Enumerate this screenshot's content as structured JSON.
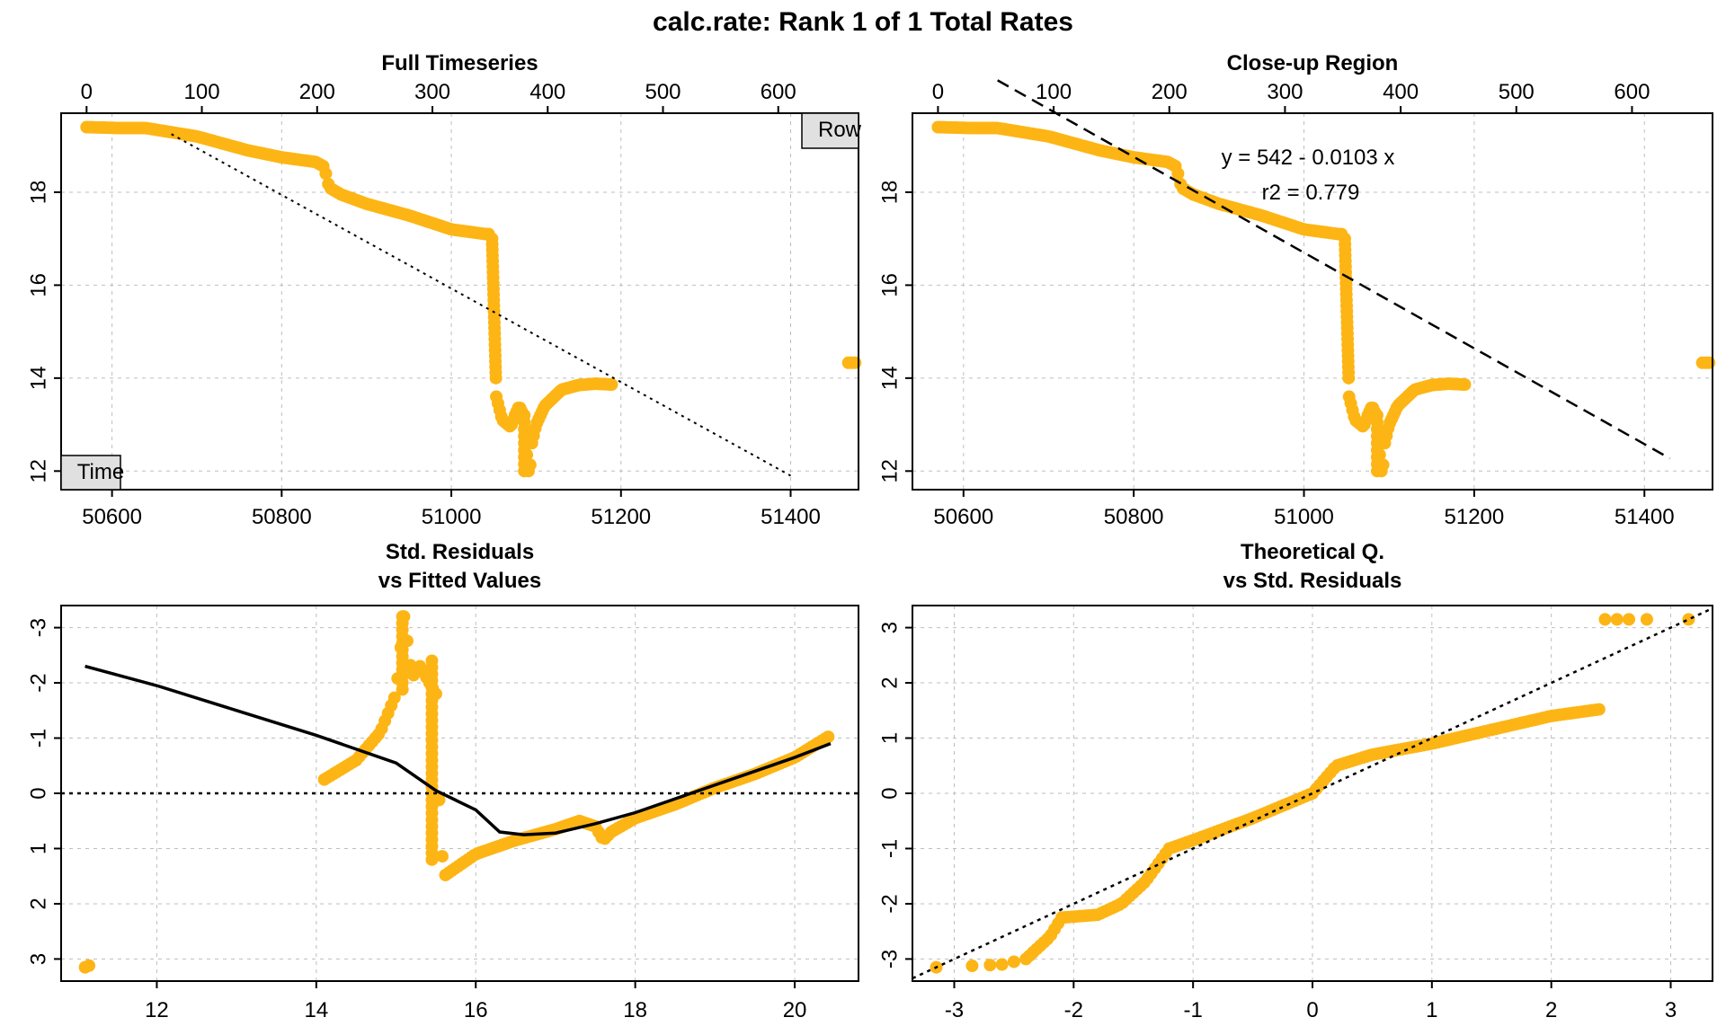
{
  "main_title": "calc.rate: Rank 1 of 1 Total Rates",
  "colors": {
    "points": "#FDB515",
    "row_axis": "#FF0000",
    "time_axis": "#0000FF",
    "line": "#000000",
    "grid": "#BEBEBE"
  },
  "chart_data": [
    {
      "id": "full",
      "type": "scatter",
      "title": "Full Timeseries",
      "x_bottom_ticks": [
        "50600",
        "50800",
        "51000",
        "51200",
        "51400"
      ],
      "x_top_ticks": [
        "0",
        "100",
        "200",
        "300",
        "400",
        "500",
        "600"
      ],
      "y_ticks": [
        "12",
        "14",
        "16",
        "18"
      ],
      "xlim": [
        50540,
        51480
      ],
      "ylim": [
        11.6,
        19.7
      ],
      "row_range": [
        0,
        650
      ],
      "box_labels": {
        "row": "Row",
        "time": "Time"
      },
      "fit_line": {
        "style": "dotted",
        "x": [
          50670,
          51400
        ],
        "y": [
          19.25,
          11.9
        ]
      },
      "grid": true
    },
    {
      "id": "closeup",
      "type": "scatter",
      "title": "Close-up Region",
      "x_bottom_ticks": [
        "50600",
        "50800",
        "51000",
        "51200",
        "51400"
      ],
      "x_top_ticks": [
        "0",
        "100",
        "200",
        "300",
        "400",
        "500",
        "600"
      ],
      "y_ticks": [
        "12",
        "14",
        "16",
        "18"
      ],
      "xlim": [
        50540,
        51480
      ],
      "ylim": [
        11.6,
        19.7
      ],
      "equation": "y = 542 - 0.0103 x",
      "r2": "r2 = 0.779",
      "fit_line": {
        "style": "dashed",
        "intercept": 542,
        "slope": -0.0103
      },
      "grid": true
    },
    {
      "id": "resid",
      "type": "scatter",
      "title": "Std. Residuals",
      "subtitle": "vs Fitted Values",
      "x_ticks": [
        "12",
        "14",
        "16",
        "18",
        "20"
      ],
      "y_ticks": [
        "-3",
        "-2",
        "-1",
        "0",
        "1",
        "2",
        "3"
      ],
      "xlim": [
        10.8,
        20.8
      ],
      "ylim": [
        3.4,
        -3.4
      ],
      "zero_line": 0,
      "smooth_line": {
        "x": [
          11.1,
          12,
          13,
          14,
          15,
          15.5,
          16,
          16.3,
          16.6,
          17,
          17.5,
          18,
          18.5,
          19,
          19.5,
          20,
          20.45
        ],
        "y": [
          -2.3,
          -1.95,
          -1.5,
          -1.05,
          -0.55,
          -0.05,
          0.3,
          0.7,
          0.75,
          0.72,
          0.55,
          0.35,
          0.1,
          -0.15,
          -0.4,
          -0.65,
          -0.9
        ]
      },
      "grid": true
    },
    {
      "id": "qq",
      "type": "scatter",
      "title": "Theoretical Q.",
      "subtitle": "vs Std. Residuals",
      "x_ticks": [
        "-3",
        "-2",
        "-1",
        "0",
        "1",
        "2",
        "3"
      ],
      "y_ticks": [
        "-3",
        "-2",
        "-1",
        "0",
        "1",
        "2",
        "3"
      ],
      "xlim": [
        -3.35,
        3.35
      ],
      "ylim": [
        -3.4,
        3.4
      ],
      "ref_line": {
        "style": "dotted",
        "slope": 1,
        "intercept": 0
      },
      "grid": true
    }
  ]
}
